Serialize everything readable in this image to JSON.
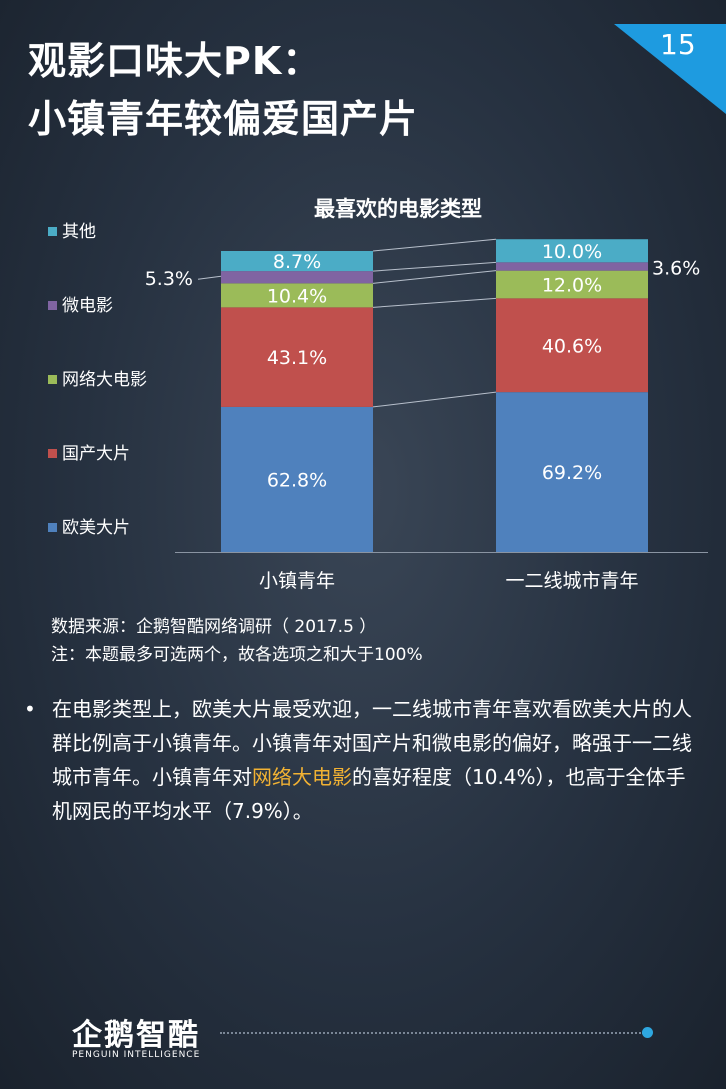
{
  "header": {
    "title_line1": "观影口味大PK：",
    "title_line2": "小镇青年较偏爱国产片",
    "page_number": "15"
  },
  "chart_data": {
    "type": "bar",
    "stacked": true,
    "title": "最喜欢的电影类型",
    "categories": [
      "小镇青年",
      "一二线城市青年"
    ],
    "series": [
      {
        "name": "欧美大片",
        "color": "#4f81bd",
        "values": [
          62.8,
          69.2
        ],
        "labels": [
          "62.8%",
          "69.2%"
        ]
      },
      {
        "name": "国产大片",
        "color": "#c0504d",
        "values": [
          43.1,
          40.6
        ],
        "labels": [
          "43.1%",
          "40.6%"
        ]
      },
      {
        "name": "网络大电影",
        "color": "#9bbb59",
        "values": [
          10.4,
          12.0
        ],
        "labels": [
          "10.4%",
          "12.0%"
        ]
      },
      {
        "name": "微电影",
        "color": "#8064a2",
        "values": [
          5.3,
          3.6
        ],
        "labels": [
          "5.3%",
          "3.6%"
        ]
      },
      {
        "name": "其他",
        "color": "#4bacc6",
        "values": [
          8.7,
          10.0
        ],
        "labels": [
          "8.7%",
          "10.0%"
        ]
      }
    ],
    "ylim": [
      0,
      130.3
    ],
    "legend_position": "left",
    "grid": false
  },
  "source": {
    "line1": "数据来源：企鹅智酷网络调研（  2017.5 ）",
    "line2": "注：本题最多可选两个，故各选项之和大于100%"
  },
  "analysis": {
    "bullet": "•",
    "part1": "在电影类型上，欧美大片最受欢迎，一二线城市青年喜欢看欧美大片的人群比例高于小镇青年。小镇青年对国产片和微电影的偏好，略强于一二线城市青年。小镇青年对",
    "highlight": "网络大电影",
    "part2": "的喜好程度（10.4%），也高于全体手机网民的平均水平（7.9%）。"
  },
  "colors": {
    "highlight": "#f2b233",
    "corner": "#1e9be0"
  },
  "logo": {
    "name": "企鹅智酷",
    "subtitle": "PENGUIN INTELLIGENCE"
  }
}
